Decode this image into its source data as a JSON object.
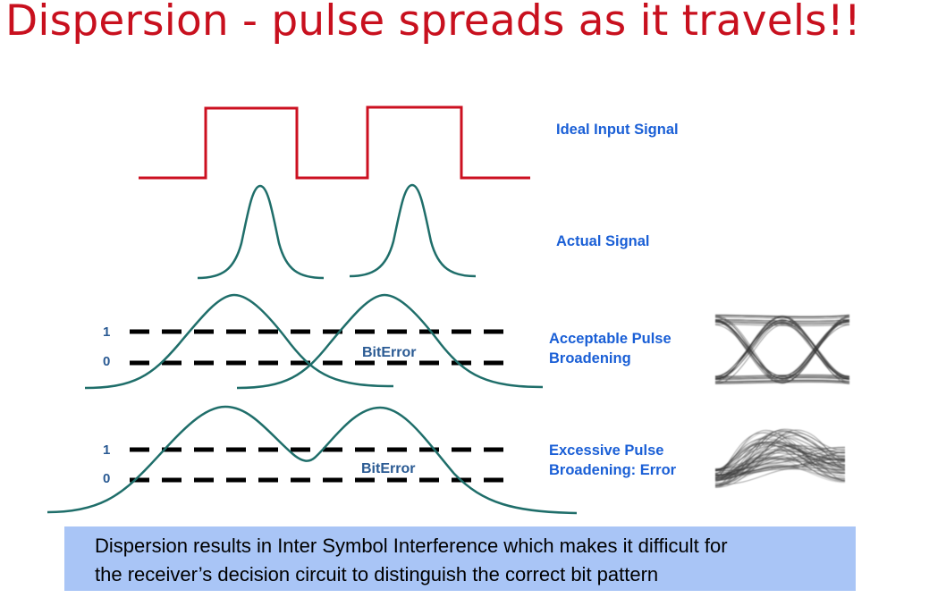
{
  "title": "Dispersion - pulse spreads as it travels!!",
  "labels": {
    "ideal": "Ideal Input Signal",
    "actual": "Actual Signal",
    "acceptable_line1": "Acceptable Pulse",
    "acceptable_line2": "Broadening",
    "excessive_line1": "Excessive Pulse",
    "excessive_line2": "Broadening:  Error"
  },
  "levels": {
    "one": "1",
    "zero": "0"
  },
  "bit_error": "BitError",
  "caption": {
    "line1": "Dispersion results in Inter Symbol Interference which makes it difficult for",
    "line2": "the receiver’s decision circuit to distinguish the correct bit pattern"
  },
  "colors": {
    "title": "#c8101e",
    "square_wave": "#cc1020",
    "pulse": "#1f6e6a",
    "label": "#1a5fd6",
    "level": "#2a5a93",
    "caption_bg": "#a9c5f6"
  }
}
